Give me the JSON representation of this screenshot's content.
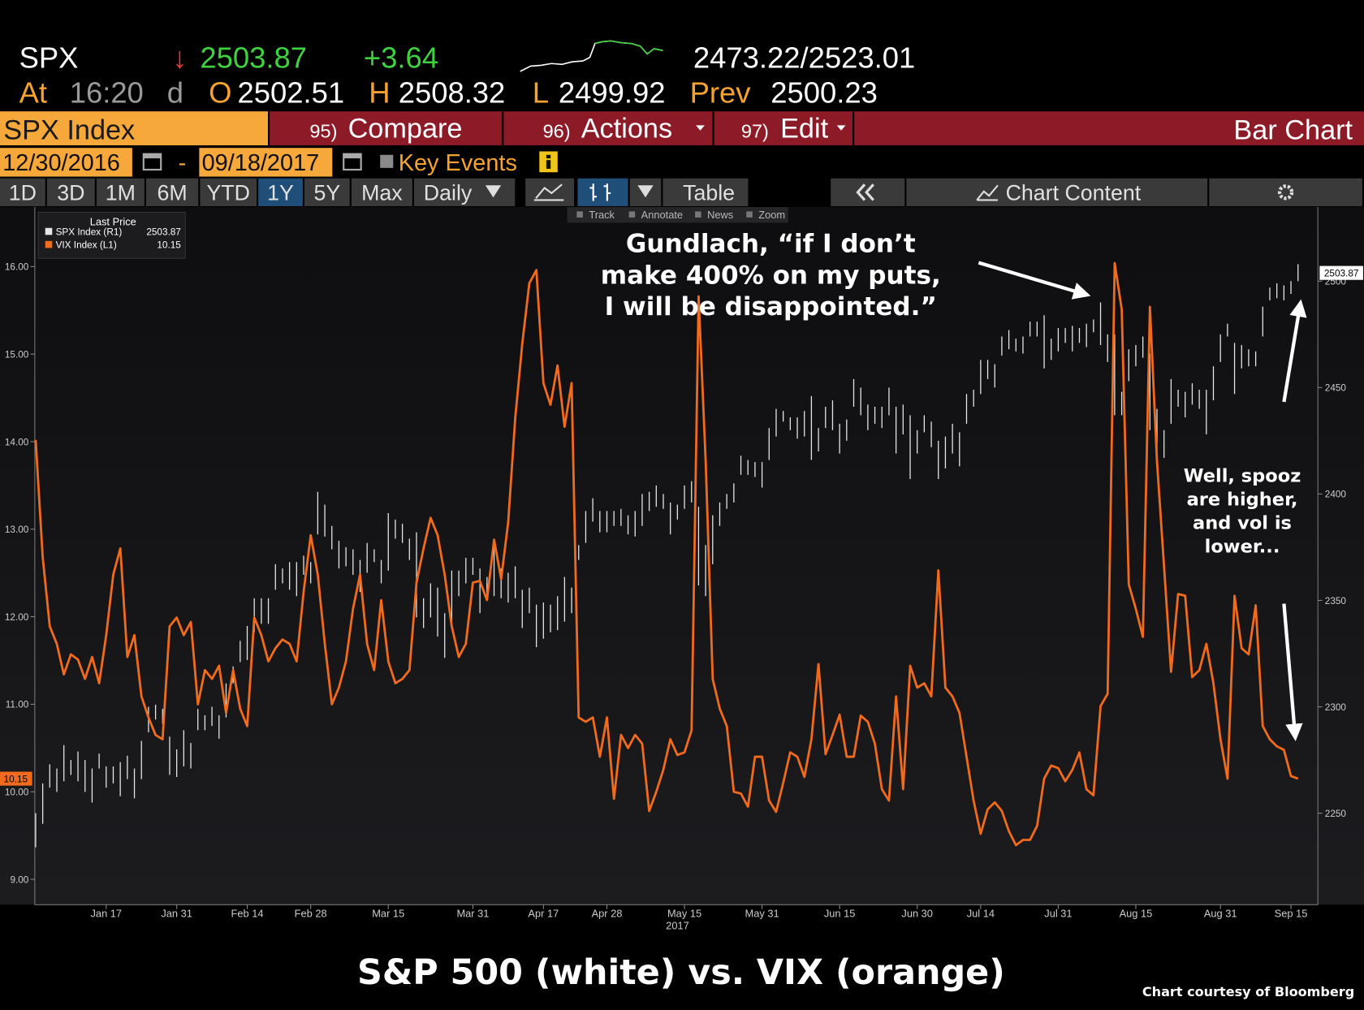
{
  "terminal": {
    "quote": {
      "ticker": "SPX",
      "arrow": "↓",
      "last": "2503.87",
      "change": "+3.64",
      "range": "2473.22/2523.01"
    },
    "detail": {
      "at": "At",
      "time": "16:20",
      "flag": "d",
      "open_label": "O",
      "open": "2502.51",
      "high_label": "H",
      "high": "2508.32",
      "low_label": "L",
      "low": "2499.92",
      "prev_label": "Prev",
      "prev": "2500.23"
    },
    "menu": {
      "security": "SPX Index",
      "compare_num": "95)",
      "compare": "Compare",
      "actions_num": "96)",
      "actions": "Actions",
      "edit_num": "97)",
      "edit": "Edit",
      "view": "Bar Chart"
    },
    "dates": {
      "start": "12/30/2016",
      "separator": "-",
      "end": "09/18/2017",
      "key_events": "Key Events"
    },
    "periods": [
      "1D",
      "3D",
      "1M",
      "6M",
      "YTD",
      "1Y",
      "5Y",
      "Max"
    ],
    "frequency": "Daily",
    "table": "Table",
    "chart_content": "Chart Content",
    "tools": [
      "Track",
      "Annotate",
      "News",
      "Zoom"
    ]
  },
  "chart_data": {
    "type": "combo",
    "title": "S&P 500 (white) vs. VIX (orange)",
    "credit": "Chart courtesy of Bloomberg",
    "legend_title": "Last Price",
    "xlim": [
      0,
      182
    ],
    "xticks": [
      {
        "value": 10,
        "label": "Jan 17"
      },
      {
        "value": 20,
        "label": "Jan 31"
      },
      {
        "value": 30,
        "label": "Feb 14"
      },
      {
        "value": 39,
        "label": "Feb 28"
      },
      {
        "value": 50,
        "label": "Mar 15"
      },
      {
        "value": 62,
        "label": "Mar 31"
      },
      {
        "value": 72,
        "label": "Apr 17"
      },
      {
        "value": 81,
        "label": "Apr 28"
      },
      {
        "value": 92,
        "label": "May 15"
      },
      {
        "value": 103,
        "label": "May 31"
      },
      {
        "value": 114,
        "label": "Jun 15"
      },
      {
        "value": 125,
        "label": "Jun 30"
      },
      {
        "value": 134,
        "label": "Jul 14"
      },
      {
        "value": 145,
        "label": "Jul 31"
      },
      {
        "value": 156,
        "label": "Aug 15"
      },
      {
        "value": 168,
        "label": "Aug 31"
      },
      {
        "value": 178,
        "label": "Sep 15"
      }
    ],
    "x_year": "2017",
    "ylim": [
      8.71,
      16.66
    ],
    "yticks": [
      {
        "value": 9,
        "label": "9.00"
      },
      {
        "value": 10,
        "label": "10.00"
      },
      {
        "value": 11,
        "label": "11.00"
      },
      {
        "value": 12,
        "label": "12.00"
      },
      {
        "value": 13,
        "label": "13.00"
      },
      {
        "value": 14,
        "label": "14.00"
      },
      {
        "value": 15,
        "label": "15.00"
      },
      {
        "value": 16,
        "label": "16.00"
      }
    ],
    "y2lim": [
      2207,
      2534
    ],
    "y2ticks": [
      2250,
      2300,
      2350,
      2400,
      2450,
      2500
    ],
    "grid": false,
    "series": [
      {
        "name": "SPX Index  (R1)",
        "type": "hilo",
        "axis": "y2",
        "color": "#e6e6e6",
        "last": 2503.87,
        "high": [
          2250,
          2264,
          2273,
          2271,
          2282,
          2275,
          2279,
          2275,
          2271,
          2278,
          2272,
          2272,
          2274,
          2277,
          2271,
          2284,
          2300,
          2301,
          2299,
          2286,
          2280,
          2289,
          2283,
          2299,
          2296,
          2300,
          2296,
          2311,
          2319,
          2331,
          2338,
          2351,
          2351,
          2351,
          2367,
          2365,
          2368,
          2368,
          2371,
          2368,
          2401,
          2395,
          2385,
          2378,
          2375,
          2374,
          2369,
          2377,
          2374,
          2369,
          2391,
          2388,
          2386,
          2379,
          2382,
          2351,
          2358,
          2356,
          2344,
          2364,
          2364,
          2370,
          2370,
          2365,
          2361,
          2379,
          2365,
          2363,
          2366,
          2355,
          2356,
          2348,
          2349,
          2348,
          2352,
          2361,
          2356,
          2376,
          2392,
          2398,
          2392,
          2392,
          2392,
          2393,
          2390,
          2392,
          2400,
          2401,
          2404,
          2400,
          2396,
          2395,
          2404,
          2406,
          2394,
          2376,
          2390,
          2396,
          2400,
          2405,
          2418,
          2416,
          2415,
          2415,
          2431,
          2440,
          2439,
          2436,
          2436,
          2439,
          2446,
          2431,
          2441,
          2444,
          2433,
          2435,
          2454,
          2450,
          2442,
          2441,
          2441,
          2450,
          2441,
          2442,
          2437,
          2430,
          2437,
          2434,
          2425,
          2427,
          2433,
          2429,
          2447,
          2449,
          2463,
          2463,
          2461,
          2474,
          2477,
          2473,
          2474,
          2481,
          2481,
          2484,
          2473,
          2478,
          2478,
          2479,
          2478,
          2480,
          2482,
          2490,
          2475,
          2475,
          2448,
          2468,
          2470,
          2474,
          2466,
          2440,
          2430,
          2454,
          2449,
          2448,
          2452,
          2449,
          2449,
          2460,
          2475,
          2480,
          2471,
          2470,
          2468,
          2467,
          2488,
          2497,
          2499,
          2498,
          2500,
          2508
        ],
        "low": [
          2234,
          2245,
          2262,
          2260,
          2265,
          2268,
          2265,
          2260,
          2255,
          2271,
          2262,
          2264,
          2258,
          2266,
          2257,
          2266,
          2288,
          2294,
          2292,
          2268,
          2267,
          2272,
          2271,
          2289,
          2289,
          2291,
          2285,
          2295,
          2311,
          2321,
          2322,
          2335,
          2339,
          2339,
          2355,
          2358,
          2355,
          2352,
          2362,
          2358,
          2381,
          2380,
          2374,
          2365,
          2366,
          2362,
          2354,
          2363,
          2368,
          2358,
          2364,
          2379,
          2377,
          2369,
          2342,
          2337,
          2342,
          2333,
          2323,
          2337,
          2352,
          2358,
          2362,
          2344,
          2350,
          2352,
          2351,
          2349,
          2351,
          2337,
          2344,
          2328,
          2332,
          2335,
          2336,
          2340,
          2344,
          2369,
          2377,
          2387,
          2382,
          2382,
          2385,
          2385,
          2381,
          2380,
          2385,
          2392,
          2394,
          2393,
          2381,
          2388,
          2393,
          2396,
          2357,
          2352,
          2367,
          2385,
          2393,
          2396,
          2409,
          2409,
          2408,
          2403,
          2416,
          2427,
          2434,
          2430,
          2426,
          2427,
          2416,
          2420,
          2431,
          2430,
          2419,
          2425,
          2441,
          2437,
          2430,
          2433,
          2431,
          2437,
          2419,
          2428,
          2407,
          2419,
          2429,
          2422,
          2407,
          2412,
          2419,
          2413,
          2433,
          2441,
          2447,
          2454,
          2450,
          2465,
          2468,
          2467,
          2466,
          2474,
          2474,
          2459,
          2463,
          2467,
          2471,
          2467,
          2471,
          2469,
          2476,
          2470,
          2462,
          2437,
          2437,
          2453,
          2460,
          2464,
          2430,
          2421,
          2417,
          2433,
          2441,
          2436,
          2442,
          2440,
          2428,
          2444,
          2462,
          2474,
          2447,
          2459,
          2460,
          2460,
          2474,
          2491,
          2492,
          2491,
          2494,
          2500
        ]
      },
      {
        "name": "VIX Index  (L1)",
        "type": "line",
        "axis": "y",
        "color": "#f26b1d",
        "values": [
          14.02,
          12.68,
          11.89,
          11.69,
          11.34,
          11.57,
          11.51,
          11.29,
          11.54,
          11.24,
          11.79,
          12.48,
          12.78,
          11.54,
          11.79,
          11.09,
          10.85,
          10.65,
          10.6,
          11.89,
          11.99,
          11.79,
          11.94,
          11.0,
          11.39,
          11.29,
          11.44,
          10.9,
          11.39,
          10.95,
          10.75,
          11.99,
          11.79,
          11.49,
          11.64,
          11.74,
          11.69,
          11.49,
          12.29,
          12.93,
          12.48,
          11.69,
          11.0,
          11.19,
          11.49,
          12.09,
          12.48,
          11.69,
          11.39,
          12.19,
          11.49,
          11.24,
          11.29,
          11.39,
          12.39,
          12.78,
          13.13,
          12.93,
          12.48,
          11.89,
          11.54,
          11.69,
          12.39,
          12.41,
          12.19,
          12.88,
          12.43,
          13.08,
          14.27,
          15.12,
          15.81,
          15.96,
          14.67,
          14.42,
          14.87,
          14.17,
          14.67,
          10.85,
          10.8,
          10.85,
          10.4,
          10.85,
          9.92,
          10.65,
          10.5,
          10.65,
          10.55,
          9.78,
          10.0,
          10.25,
          10.6,
          10.42,
          10.45,
          10.7,
          15.66,
          13.78,
          11.29,
          10.95,
          10.75,
          10.0,
          9.98,
          9.83,
          10.4,
          10.4,
          9.9,
          9.77,
          10.1,
          10.45,
          10.4,
          10.17,
          10.6,
          11.46,
          10.43,
          10.65,
          10.88,
          10.4,
          10.4,
          10.87,
          10.8,
          10.55,
          10.03,
          9.9,
          11.09,
          10.03,
          11.44,
          11.19,
          11.24,
          11.09,
          12.53,
          11.19,
          11.09,
          10.9,
          10.4,
          9.9,
          9.52,
          9.8,
          9.88,
          9.78,
          9.55,
          9.39,
          9.45,
          9.45,
          9.61,
          10.15,
          10.3,
          10.27,
          10.12,
          10.25,
          10.45,
          10.03,
          9.96,
          10.98,
          11.12,
          16.04,
          15.51,
          12.37,
          12.09,
          11.77,
          15.54,
          13.78,
          12.58,
          11.37,
          12.26,
          12.24,
          11.31,
          11.39,
          11.69,
          11.24,
          10.6,
          10.15,
          12.24,
          11.64,
          11.57,
          12.13,
          10.75,
          10.6,
          10.52,
          10.48,
          10.18,
          10.15
        ]
      }
    ],
    "annotations": [
      {
        "lines": [
          "Gundlach, “if I don’t",
          "make 400% on my puts,",
          "I will be disappointed.”"
        ]
      },
      {
        "lines": [
          "Well, spooz",
          "are higher,",
          "and vol is",
          "lower..."
        ]
      }
    ]
  }
}
